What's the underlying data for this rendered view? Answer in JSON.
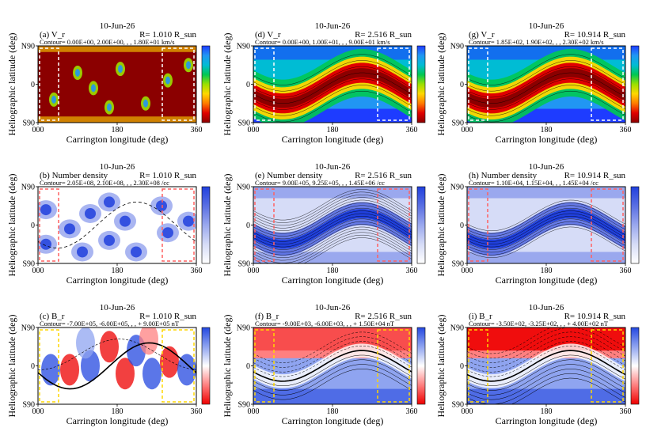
{
  "colors": {
    "vr_scale": [
      "#8b0000",
      "#e00000",
      "#ff7a00",
      "#ffd700",
      "#9be000",
      "#00c853",
      "#00bcd4",
      "#2196f3",
      "#1e3cff"
    ],
    "nd_scale": [
      "#ffffff",
      "#d6dcf7",
      "#9aa8ee",
      "#5a6fe3",
      "#2040dd"
    ],
    "br_scale": [
      "#ee0000",
      "#ff8080",
      "#ffffff",
      "#8fa4f0",
      "#2448e0"
    ],
    "box_white": "#ffffff",
    "box_red": "#ff6060",
    "box_yellow": "#ffd700"
  },
  "chart_data": [
    {
      "id": "a",
      "type": "heatmap",
      "panel_label": "(a) V_r",
      "date": "10-Jun-26",
      "radius_text": "R=  1.010 R_sun",
      "contour_text": "Contour=  0.00E+00, 2.00E+00, , , 1.80E+01 km/s",
      "xlabel": "Carrington longitude (deg)",
      "ylabel": "Heliographic latitude (deg)",
      "xticks": [
        "000",
        "180",
        "360"
      ],
      "yticks": [
        "N90",
        "0",
        "S90"
      ],
      "xlim": [
        0,
        360
      ],
      "ylim": [
        -90,
        90
      ],
      "colormap": "vr_scale",
      "box_color": "box_white"
    },
    {
      "id": "d",
      "type": "heatmap",
      "panel_label": "(d) V_r",
      "date": "10-Jun-26",
      "radius_text": "R=  2.516 R_sun",
      "contour_text": "Contour=  0.00E+00, 1.00E+01, , , 9.00E+01 km/s",
      "xlabel": "Carrington longitude (deg)",
      "ylabel": "Heliographic latitude (deg)",
      "xticks": [
        "000",
        "180",
        "360"
      ],
      "yticks": [
        "N90",
        "0",
        "S90"
      ],
      "xlim": [
        0,
        360
      ],
      "ylim": [
        -90,
        90
      ],
      "colormap": "vr_scale",
      "box_color": "box_white"
    },
    {
      "id": "g",
      "type": "heatmap",
      "panel_label": "(g) V_r",
      "date": "10-Jun-26",
      "radius_text": "R=  10.914 R_sun",
      "contour_text": "Contour=  1.85E+02, 1.90E+02, , , 2.30E+02 km/s",
      "xlabel": "Carrington longitude (deg)",
      "ylabel": "Heliographic latitude (deg)",
      "xticks": [
        "000",
        "180",
        "360"
      ],
      "yticks": [
        "N90",
        "0",
        "S90"
      ],
      "xlim": [
        0,
        360
      ],
      "ylim": [
        -90,
        90
      ],
      "colormap": "vr_scale",
      "box_color": "box_white"
    },
    {
      "id": "b",
      "type": "heatmap",
      "panel_label": "(b) Number density",
      "date": "10-Jun-26",
      "radius_text": "R=  1.010 R_sun",
      "contour_text": "Contour=  2.05E+08, 2.10E+08, , , 2.30E+08 /cc",
      "xlabel": "Carrington longitude (deg)",
      "ylabel": "Heliographic latitude (deg)",
      "xticks": [
        "000",
        "180",
        "360"
      ],
      "yticks": [
        "N90",
        "0",
        "S90"
      ],
      "xlim": [
        0,
        360
      ],
      "ylim": [
        -90,
        90
      ],
      "colormap": "nd_scale",
      "box_color": "box_red"
    },
    {
      "id": "e",
      "type": "heatmap",
      "panel_label": "(e) Number density",
      "date": "10-Jun-26",
      "radius_text": "R=  2.516 R_sun",
      "contour_text": "Contour=  9.00E+05, 9.25E+05, , , 1.45E+06 /cc",
      "xlabel": "Carrington longitude (deg)",
      "ylabel": "Heliographic latitude (deg)",
      "xticks": [
        "000",
        "180",
        "360"
      ],
      "yticks": [
        "N90",
        "0",
        "S90"
      ],
      "xlim": [
        0,
        360
      ],
      "ylim": [
        -90,
        90
      ],
      "colormap": "nd_scale",
      "box_color": "box_red"
    },
    {
      "id": "h",
      "type": "heatmap",
      "panel_label": "(h) Number density",
      "date": "10-Jun-26",
      "radius_text": "R=  10.914 R_sun",
      "contour_text": "Contour=  1.10E+04, 1.15E+04, , , 1.45E+04 /cc",
      "xlabel": "Carrington longitude (deg)",
      "ylabel": "Heliographic latitude (deg)",
      "xticks": [
        "000",
        "180",
        "360"
      ],
      "yticks": [
        "N90",
        "0",
        "S90"
      ],
      "xlim": [
        0,
        360
      ],
      "ylim": [
        -90,
        90
      ],
      "colormap": "nd_scale",
      "box_color": "box_red"
    },
    {
      "id": "c",
      "type": "heatmap",
      "panel_label": "(c) B_r",
      "date": "10-Jun-26",
      "radius_text": "R=  1.010 R_sun",
      "contour_text": "Contour= -7.00E+05, -6.00E+05, , , + 9.00E+05 nT",
      "xlabel": "Carrington longitude (deg)",
      "ylabel": "Heliographic latitude (deg)",
      "xticks": [
        "000",
        "180",
        "360"
      ],
      "yticks": [
        "N90",
        "0",
        "S90"
      ],
      "xlim": [
        0,
        360
      ],
      "ylim": [
        -90,
        90
      ],
      "colormap": "br_scale",
      "box_color": "box_yellow"
    },
    {
      "id": "f",
      "type": "heatmap",
      "panel_label": "(f) B_r",
      "date": "10-Jun-26",
      "radius_text": "R=  2.516 R_sun",
      "contour_text": "Contour= -9.00E+03, -6.00E+03, , , + 1.50E+04 nT",
      "xlabel": "Carrington longitude (deg)",
      "ylabel": "Heliographic latitude (deg)",
      "xticks": [
        "000",
        "180",
        "360"
      ],
      "yticks": [
        "N90",
        "0",
        "S90"
      ],
      "xlim": [
        0,
        360
      ],
      "ylim": [
        -90,
        90
      ],
      "colormap": "br_scale",
      "box_color": "box_yellow"
    },
    {
      "id": "i",
      "type": "heatmap",
      "panel_label": "(i) B_r",
      "date": "10-Jun-26",
      "radius_text": "R=  10.914 R_sun",
      "contour_text": "Contour= -3.50E+02, -3.25E+02, , , + 4.00E+02 nT",
      "xlabel": "Carrington longitude (deg)",
      "ylabel": "Heliographic latitude (deg)",
      "xticks": [
        "000",
        "180",
        "360"
      ],
      "yticks": [
        "N90",
        "0",
        "S90"
      ],
      "xlim": [
        0,
        360
      ],
      "ylim": [
        -90,
        90
      ],
      "colormap": "br_scale",
      "box_color": "box_yellow"
    }
  ]
}
